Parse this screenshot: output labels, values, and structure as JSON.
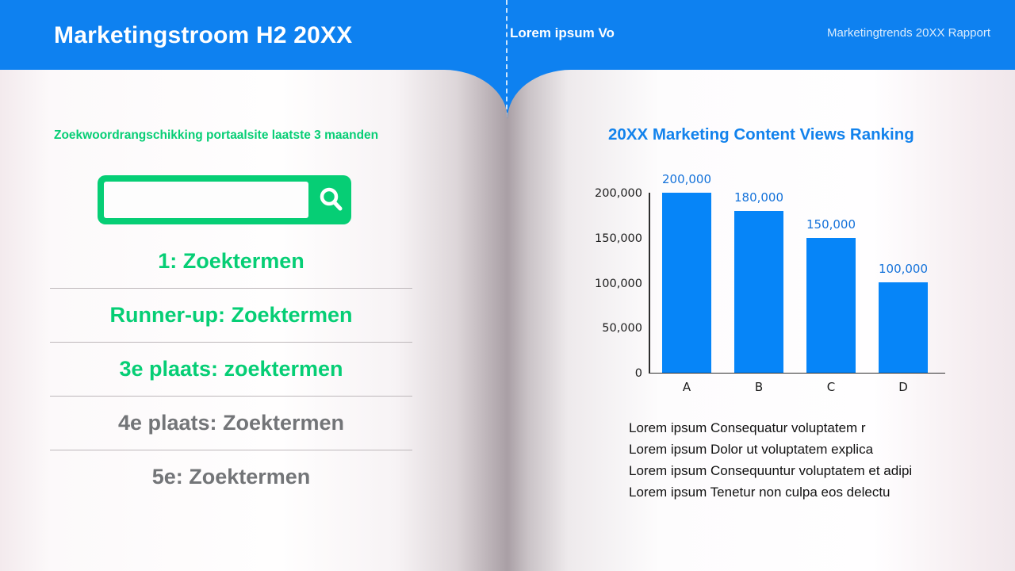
{
  "colors": {
    "header_blue": "#0e81f0",
    "accent_green": "#06ce75",
    "bar_blue": "#0685f8",
    "data_label_blue": "#1472da",
    "chart_title_blue": "#1282ec",
    "gray_rank_text": "#737578"
  },
  "header": {
    "title": "Marketingstroom H2 20XX",
    "center_label": "Lorem ipsum Vo",
    "right_label": "Marketingtrends 20XX Rapport"
  },
  "left_page": {
    "heading": "Zoekwoordrangschikking portaalsite laatste 3 maanden",
    "search": {
      "value": "",
      "placeholder": "",
      "icon": "magnifier-icon"
    },
    "ranking": [
      {
        "label": "1: Zoektermen",
        "highlight": true
      },
      {
        "label": "Runner-up: Zoektermen",
        "highlight": true
      },
      {
        "label": "3e plaats: zoektermen",
        "highlight": true
      },
      {
        "label": "4e plaats: Zoektermen",
        "highlight": false
      },
      {
        "label": "5e: Zoektermen",
        "highlight": false
      }
    ]
  },
  "right_page": {
    "title": "20XX Marketing Content Views Ranking",
    "notes": [
      "Lorem ipsum Consequatur voluptatem r",
      "Lorem ipsum Dolor ut voluptatem explica",
      "Lorem ipsum Consequuntur voluptatem et adipi",
      "Lorem ipsum Tenetur non culpa eos delectu"
    ]
  },
  "chart_data": {
    "type": "bar",
    "title": "20XX Marketing Content Views Ranking",
    "categories": [
      "A",
      "B",
      "C",
      "D"
    ],
    "values": [
      200000,
      180000,
      150000,
      100000
    ],
    "data_labels": [
      "200,000",
      "180,000",
      "150,000",
      "100,000"
    ],
    "y_ticks": [
      0,
      50000,
      100000,
      150000,
      200000
    ],
    "y_tick_labels": [
      "0",
      "50,000",
      "100,000",
      "150,000",
      "200,000"
    ],
    "ylim": [
      0,
      200000
    ],
    "xlabel": "",
    "ylabel": "",
    "grid": false,
    "legend": false,
    "bar_color": "#0685f8",
    "label_color": "#1472da"
  }
}
